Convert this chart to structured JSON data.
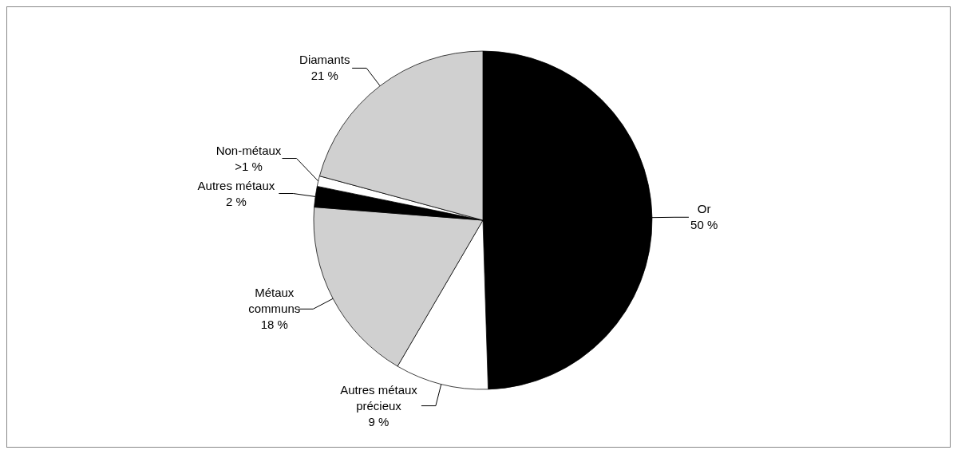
{
  "chart_data": {
    "type": "pie",
    "categories": [
      "Or",
      "Autres métaux\nprécieux",
      "Métaux\ncommuns",
      "Autres métaux",
      "Non-métaux",
      "Diamants"
    ],
    "values": [
      50,
      9,
      18,
      2,
      1,
      21
    ],
    "value_labels": [
      "50 %",
      "9 %",
      "18 %",
      "2 %",
      ">1 %",
      "21 %"
    ],
    "colors": [
      "#000000",
      "#ffffff",
      "#d0d0d0",
      "#000000",
      "#ffffff",
      "#d0d0d0"
    ],
    "legend": false
  }
}
